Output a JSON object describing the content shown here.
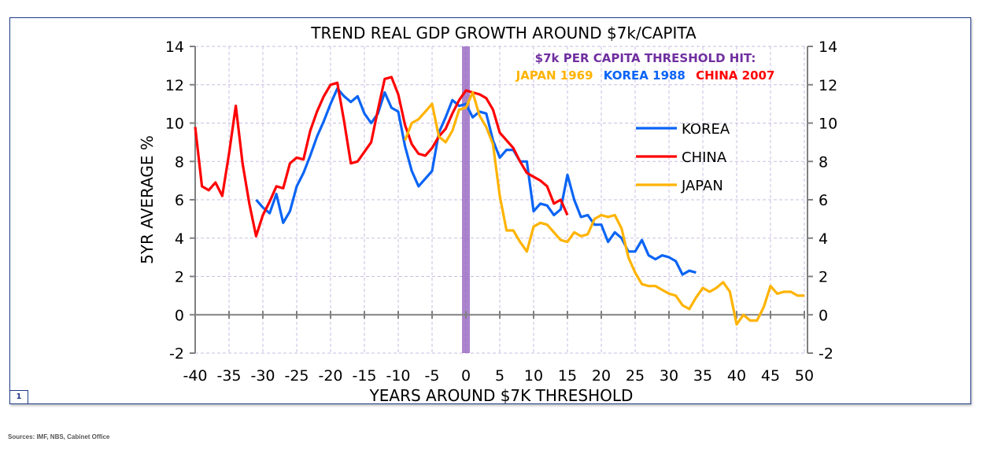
{
  "page_number": "1",
  "sources": "Sources: IMF, NBS, Cabinet Office",
  "chart_data": {
    "type": "line",
    "title": "TREND REAL GDP GROWTH AROUND $7k/CAPITA",
    "xlabel": "YEARS AROUND $7K THRESHOLD",
    "ylabel": "5YR AVERAGE %",
    "xlim": [
      -40,
      50
    ],
    "ylim": [
      -2,
      14
    ],
    "xticks": [
      -40,
      -35,
      -30,
      -25,
      -20,
      -15,
      -10,
      -5,
      0,
      5,
      10,
      15,
      20,
      25,
      30,
      35,
      40,
      45,
      50
    ],
    "yticks": [
      -2,
      0,
      2,
      4,
      6,
      8,
      10,
      12,
      14
    ],
    "secondary_y_axis": true,
    "grid": true,
    "legend_position": "right",
    "threshold_marker": {
      "x": 0,
      "color": "#9b6fc4"
    },
    "annotation": {
      "heading": "$7k PER CAPITA THRESHOLD HIT:",
      "heading_color": "#7030a0",
      "items": [
        {
          "text": "JAPAN 1969",
          "color": "#ffb300"
        },
        {
          "text": "KOREA 1988",
          "color": "#0a64f5"
        },
        {
          "text": "CHINA 2007",
          "color": "#ff0000"
        }
      ]
    },
    "series": [
      {
        "name": "KOREA",
        "color": "#0a64f5",
        "x": [
          -31,
          -30,
          -29,
          -28,
          -27,
          -26,
          -25,
          -24,
          -23,
          -22,
          -21,
          -20,
          -19,
          -18,
          -17,
          -16,
          -15,
          -14,
          -13,
          -12,
          -11,
          -10,
          -9,
          -8,
          -7,
          -6,
          -5,
          -4,
          -3,
          -2,
          -1,
          0,
          1,
          2,
          3,
          4,
          5,
          6,
          7,
          8,
          9,
          10,
          11,
          12,
          13,
          14,
          15,
          16,
          17,
          18,
          19,
          20,
          21,
          22,
          23,
          24,
          25,
          26,
          27,
          28,
          29,
          30,
          31,
          32,
          33,
          34
        ],
        "values": [
          6.0,
          5.6,
          5.3,
          6.3,
          4.8,
          5.4,
          6.7,
          7.4,
          8.3,
          9.3,
          10.1,
          11.0,
          11.8,
          11.4,
          11.1,
          11.4,
          10.5,
          10.0,
          10.5,
          11.6,
          10.8,
          10.6,
          8.8,
          7.5,
          6.7,
          7.1,
          7.5,
          9.5,
          10.3,
          11.2,
          10.9,
          11.0,
          10.3,
          10.6,
          10.5,
          9.1,
          8.2,
          8.6,
          8.6,
          8.0,
          8.0,
          5.4,
          5.8,
          5.7,
          5.2,
          5.5,
          7.3,
          6.0,
          5.1,
          5.2,
          4.7,
          4.7,
          3.8,
          4.3,
          4.0,
          3.3,
          3.3,
          3.9,
          3.1,
          2.9,
          3.1,
          3.0,
          2.8,
          2.1,
          2.3,
          2.2
        ]
      },
      {
        "name": "CHINA",
        "color": "#ff0000",
        "x": [
          -40,
          -39,
          -38,
          -37,
          -36,
          -35,
          -34,
          -33,
          -32,
          -31,
          -30,
          -29,
          -28,
          -27,
          -26,
          -25,
          -24,
          -23,
          -22,
          -21,
          -20,
          -19,
          -18,
          -17,
          -16,
          -15,
          -14,
          -13,
          -12,
          -11,
          -10,
          -9,
          -8,
          -7,
          -6,
          -5,
          -4,
          -3,
          -2,
          -1,
          0,
          1,
          2,
          3,
          4,
          5,
          6,
          7,
          8,
          9,
          10,
          11,
          12,
          13,
          14,
          15
        ],
        "values": [
          9.8,
          6.7,
          6.5,
          6.9,
          6.2,
          8.4,
          10.9,
          7.9,
          5.8,
          4.1,
          5.2,
          5.9,
          6.7,
          6.6,
          7.9,
          8.2,
          8.1,
          9.6,
          10.6,
          11.4,
          12.0,
          12.1,
          10.1,
          7.9,
          8.0,
          8.5,
          9.0,
          10.7,
          12.3,
          12.4,
          11.5,
          9.9,
          8.9,
          8.4,
          8.3,
          8.7,
          9.3,
          9.7,
          10.5,
          11.2,
          11.7,
          11.6,
          11.5,
          11.3,
          10.7,
          9.5,
          9.1,
          8.7,
          8.0,
          7.4,
          7.2,
          7.0,
          6.7,
          5.8,
          6.0,
          5.2
        ]
      },
      {
        "name": "JAPAN",
        "color": "#ffb300",
        "x": [
          -9,
          -8,
          -7,
          -6,
          -5,
          -4,
          -3,
          -2,
          -1,
          0,
          1,
          2,
          3,
          4,
          5,
          6,
          7,
          8,
          9,
          10,
          11,
          12,
          13,
          14,
          15,
          16,
          17,
          18,
          19,
          20,
          21,
          22,
          23,
          24,
          25,
          26,
          27,
          28,
          29,
          30,
          31,
          32,
          33,
          34,
          35,
          36,
          37,
          38,
          39,
          40,
          41,
          42,
          43,
          44,
          45,
          46,
          47,
          48,
          49,
          50
        ],
        "values": [
          9.1,
          10.0,
          10.2,
          10.6,
          11.0,
          9.3,
          9.0,
          9.6,
          10.7,
          10.8,
          11.6,
          10.4,
          9.8,
          8.9,
          6.2,
          4.4,
          4.4,
          3.8,
          3.3,
          4.6,
          4.8,
          4.7,
          4.3,
          3.9,
          3.8,
          4.3,
          4.1,
          4.2,
          5.0,
          5.2,
          5.1,
          5.2,
          4.5,
          3.0,
          2.2,
          1.6,
          1.5,
          1.5,
          1.3,
          1.1,
          1.0,
          0.5,
          0.3,
          0.9,
          1.4,
          1.2,
          1.4,
          1.7,
          1.2,
          -0.5,
          0.0,
          -0.3,
          -0.3,
          0.4,
          1.5,
          1.1,
          1.2,
          1.2,
          1.0,
          1.0
        ]
      }
    ]
  }
}
